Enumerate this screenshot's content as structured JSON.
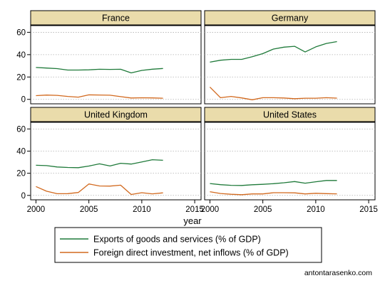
{
  "chart_data": {
    "type": "line",
    "x_axis_title": "year",
    "x_ticks": [
      2000,
      2005,
      2010,
      2015
    ],
    "y_ticks": [
      0,
      20,
      40,
      60
    ],
    "xlim": [
      1999.5,
      2015.6
    ],
    "ylim": [
      -4,
      66
    ],
    "grid": true,
    "legend_position": "bottom",
    "x": [
      2000,
      2001,
      2002,
      2003,
      2004,
      2005,
      2006,
      2007,
      2008,
      2009,
      2010,
      2011,
      2012
    ],
    "legend": [
      {
        "name": "Exports of goods and services (% of GDP)",
        "color": "#1f7a3a"
      },
      {
        "name": "Foreign direct investment, net inflows (% of GDP)",
        "color": "#d2691e"
      }
    ],
    "panels": [
      {
        "title": "France",
        "series": [
          {
            "name": "Exports of goods and services (% of GDP)",
            "values": [
              28.5,
              28.0,
              27.5,
              26.2,
              26.2,
              26.4,
              26.9,
              26.8,
              26.9,
              23.7,
              25.9,
              27.0,
              27.6
            ]
          },
          {
            "name": "Foreign direct investment, net inflows (% of GDP)",
            "values": [
              3.3,
              3.8,
              3.6,
              2.6,
              2.0,
              4.0,
              3.9,
              3.7,
              2.4,
              1.2,
              1.4,
              1.3,
              1.0
            ]
          }
        ]
      },
      {
        "title": "Germany",
        "series": [
          {
            "name": "Exports of goods and services (% of GDP)",
            "values": [
              33.3,
              35.0,
              35.8,
              35.8,
              38.2,
              40.9,
              45.0,
              46.7,
              47.5,
              42.4,
              47.0,
              50.0,
              51.7
            ]
          },
          {
            "name": "Foreign direct investment, net inflows (% of GDP)",
            "values": [
              11.0,
              1.5,
              2.6,
              1.3,
              -0.4,
              1.5,
              1.5,
              1.2,
              0.6,
              1.0,
              1.0,
              1.5,
              1.1
            ]
          }
        ]
      },
      {
        "title": "United Kingdom",
        "series": [
          {
            "name": "Exports of goods and services (% of GDP)",
            "values": [
              27.2,
              26.9,
              25.7,
              25.2,
              25.0,
              26.5,
              28.5,
              26.6,
              29.0,
              28.3,
              30.2,
              32.2,
              31.7
            ]
          },
          {
            "name": "Foreign direct investment, net inflows (% of GDP)",
            "values": [
              8.0,
              3.8,
              1.5,
              1.6,
              2.6,
              10.3,
              8.5,
              8.4,
              9.2,
              0.8,
              2.4,
              1.4,
              2.3
            ]
          }
        ]
      },
      {
        "title": "United States",
        "series": [
          {
            "name": "Exports of goods and services (% of GDP)",
            "values": [
              10.7,
              9.7,
              9.1,
              9.0,
              9.6,
              10.0,
              10.6,
              11.4,
              12.5,
              11.0,
              12.3,
              13.5,
              13.5
            ]
          },
          {
            "name": "Foreign direct investment, net inflows (% of GDP)",
            "values": [
              3.3,
              1.7,
              1.0,
              0.6,
              1.3,
              1.3,
              2.4,
              2.4,
              2.3,
              1.3,
              1.9,
              1.6,
              1.4
            ]
          }
        ]
      }
    ]
  },
  "watermark": "antontarasenko.com"
}
